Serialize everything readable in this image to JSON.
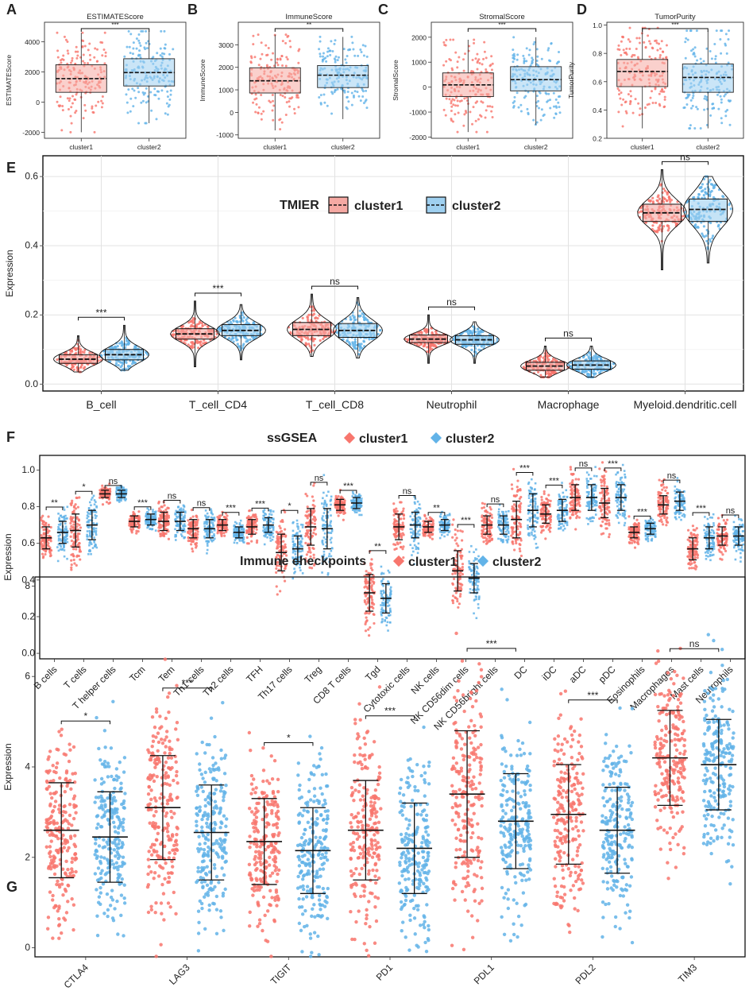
{
  "colors": {
    "cluster1": "#f8766d",
    "cluster2": "#62b3e8",
    "box1": "#f5a9a3",
    "box2": "#9fd0f0",
    "grid": "#e2e2e2"
  },
  "chart_data": [
    {
      "panel": "A",
      "type": "box",
      "title": "ESTIMATEScore",
      "ylabel": "ESTIMATEScore",
      "categories": [
        "cluster1",
        "cluster2"
      ],
      "ylim": [
        -2400,
        5300
      ],
      "yticks": [
        -2000,
        0,
        2000,
        4000
      ],
      "ytick_labels": [
        "-2000",
        "0",
        "2000",
        "4000"
      ],
      "series": [
        {
          "name": "cluster1",
          "q1": 650,
          "median": 1560,
          "q3": 2480,
          "min": -2000,
          "max": 4600
        },
        {
          "name": "cluster2",
          "q1": 1070,
          "median": 1960,
          "q3": 2880,
          "min": -1400,
          "max": 4700
        }
      ],
      "sig": "***"
    },
    {
      "panel": "B",
      "type": "box",
      "title": "ImmuneScore",
      "ylabel": "ImmuneScore",
      "categories": [
        "cluster1",
        "cluster2"
      ],
      "ylim": [
        -1150,
        4000
      ],
      "yticks": [
        -1000,
        0,
        1000,
        2000,
        3000
      ],
      "ytick_labels": [
        "-1000",
        "0",
        "1000",
        "2000",
        "3000"
      ],
      "series": [
        {
          "name": "cluster1",
          "q1": 860,
          "median": 1400,
          "q3": 1980,
          "min": -800,
          "max": 3450
        },
        {
          "name": "cluster2",
          "q1": 1100,
          "median": 1650,
          "q3": 2080,
          "min": -300,
          "max": 3350
        }
      ],
      "sig": "**"
    },
    {
      "panel": "C",
      "type": "box",
      "title": "StromalScore",
      "ylabel": "StromalScore",
      "categories": [
        "cluster1",
        "cluster2"
      ],
      "ylim": [
        -2050,
        2600
      ],
      "yticks": [
        -2000,
        -1000,
        0,
        1000,
        2000
      ],
      "ytick_labels": [
        "-2000",
        "-1000",
        "0",
        "1000",
        "2000"
      ],
      "series": [
        {
          "name": "cluster1",
          "q1": -380,
          "median": 90,
          "q3": 570,
          "min": -1800,
          "max": 1900
        },
        {
          "name": "cluster2",
          "q1": -150,
          "median": 300,
          "q3": 820,
          "min": -1500,
          "max": 2000
        }
      ],
      "sig": "***"
    },
    {
      "panel": "D",
      "type": "box",
      "title": "TumorPurity",
      "ylabel": "TumorPurity",
      "categories": [
        "cluster1",
        "cluster2"
      ],
      "ylim": [
        0.2,
        1.02
      ],
      "yticks": [
        0.2,
        0.4,
        0.6,
        0.8,
        1.0
      ],
      "ytick_labels": [
        "0.2",
        "0.4",
        "0.6",
        "0.8",
        "1.0"
      ],
      "series": [
        {
          "name": "cluster1",
          "q1": 0.565,
          "median": 0.672,
          "q3": 0.757,
          "min": 0.27,
          "max": 0.98
        },
        {
          "name": "cluster2",
          "q1": 0.525,
          "median": 0.63,
          "q3": 0.725,
          "min": 0.27,
          "max": 0.96
        }
      ],
      "sig": "***"
    },
    {
      "panel": "E",
      "type": "violin-box",
      "ylabel": "Expression",
      "legend_title": "TMIER",
      "legend": [
        "cluster1",
        "cluster2"
      ],
      "categories": [
        "B_cell",
        "T_cell_CD4",
        "T_cell_CD8",
        "Neutrophil",
        "Macrophage",
        "Myeloid.dendritic.cell"
      ],
      "ylim": [
        -0.02,
        0.66
      ],
      "yticks": [
        0.0,
        0.2,
        0.4,
        0.6
      ],
      "ytick_labels": [
        "0.0",
        "0.2",
        "0.4",
        "0.6"
      ],
      "series": [
        {
          "name": "cluster1",
          "q1": [
            0.06,
            0.13,
            0.14,
            0.12,
            0.04,
            0.47
          ],
          "median": [
            0.072,
            0.145,
            0.158,
            0.13,
            0.052,
            0.495
          ],
          "q3": [
            0.085,
            0.16,
            0.178,
            0.142,
            0.063,
            0.52
          ],
          "min": [
            0.035,
            0.05,
            0.08,
            0.06,
            0.02,
            0.33
          ],
          "max": [
            0.14,
            0.24,
            0.26,
            0.2,
            0.11,
            0.62
          ]
        },
        {
          "name": "cluster2",
          "q1": [
            0.07,
            0.14,
            0.135,
            0.115,
            0.043,
            0.47
          ],
          "median": [
            0.085,
            0.155,
            0.155,
            0.128,
            0.055,
            0.505
          ],
          "q3": [
            0.1,
            0.172,
            0.175,
            0.14,
            0.067,
            0.535
          ],
          "min": [
            0.04,
            0.07,
            0.075,
            0.06,
            0.02,
            0.35
          ],
          "max": [
            0.17,
            0.23,
            0.25,
            0.18,
            0.11,
            0.6
          ]
        }
      ],
      "sig": [
        "***",
        "***",
        "ns",
        "ns",
        "ns",
        "ns"
      ]
    },
    {
      "panel": "F",
      "type": "dot-errorbar",
      "title": "ssGSEA",
      "ylabel": "Expression",
      "legend": [
        "cluster1",
        "cluster2"
      ],
      "categories": [
        "B cells",
        "T cells",
        "T helper cells",
        "Tcm",
        "Tem",
        "Th1 cells",
        "Th2 cells",
        "TFH",
        "Th17 cells",
        "Treg",
        "CD8 T cells",
        "Tgd",
        "Cytotoxic cells",
        "NK cells",
        "NK CD56dim cells",
        "NK CD56bright cells",
        "DC",
        "iDC",
        "aDC",
        "pDC",
        "Eosinophils",
        "Macrophages",
        "Mast cells",
        "Neutrophils"
      ],
      "ylim": [
        -0.03,
        1.08
      ],
      "yticks": [
        0.0,
        0.2,
        0.4,
        0.6,
        0.8,
        1.0
      ],
      "ytick_labels": [
        "0.0",
        "0.2",
        "0.4",
        "0.6",
        "0.8",
        "1.0"
      ],
      "series": [
        {
          "name": "cluster1",
          "mean": [
            0.63,
            0.67,
            0.87,
            0.72,
            0.72,
            0.68,
            0.7,
            0.69,
            0.55,
            0.69,
            0.81,
            0.33,
            0.69,
            0.69,
            0.45,
            0.7,
            0.73,
            0.76,
            0.85,
            0.82,
            0.66,
            0.81,
            0.57,
            0.64
          ],
          "sd": [
            0.06,
            0.09,
            0.02,
            0.03,
            0.05,
            0.05,
            0.03,
            0.04,
            0.1,
            0.1,
            0.03,
            0.1,
            0.07,
            0.03,
            0.11,
            0.05,
            0.1,
            0.05,
            0.07,
            0.08,
            0.03,
            0.05,
            0.06,
            0.05
          ]
        },
        {
          "name": "cluster2",
          "mean": [
            0.66,
            0.7,
            0.87,
            0.73,
            0.72,
            0.68,
            0.66,
            0.7,
            0.57,
            0.68,
            0.82,
            0.3,
            0.7,
            0.7,
            0.41,
            0.7,
            0.78,
            0.78,
            0.85,
            0.85,
            0.68,
            0.83,
            0.63,
            0.64
          ],
          "sd": [
            0.06,
            0.08,
            0.02,
            0.03,
            0.05,
            0.05,
            0.03,
            0.04,
            0.07,
            0.11,
            0.03,
            0.08,
            0.07,
            0.03,
            0.08,
            0.05,
            0.09,
            0.06,
            0.07,
            0.07,
            0.03,
            0.05,
            0.06,
            0.05
          ]
        }
      ],
      "sig": [
        "**",
        "*",
        "ns",
        "***",
        "ns",
        "ns",
        "***",
        "***",
        "*",
        "ns",
        "***",
        "**",
        "ns",
        "**",
        "***",
        "ns",
        "***",
        "***",
        "ns",
        "***",
        "***",
        "ns",
        "***",
        "ns"
      ]
    },
    {
      "panel": "G",
      "type": "dot-errorbar",
      "title": "Immune checkpoints",
      "ylabel": "Expression",
      "legend": [
        "cluster1",
        "cluster2"
      ],
      "categories": [
        "CTLA4",
        "LAG3",
        "TIGIT",
        "PD1",
        "PDL1",
        "PDL2",
        "TIM3"
      ],
      "ylim": [
        -0.2,
        8.2
      ],
      "yticks": [
        0,
        2,
        4,
        6,
        8
      ],
      "ytick_labels": [
        "0",
        "2",
        "4",
        "6",
        "8"
      ],
      "series": [
        {
          "name": "cluster1",
          "mean": [
            2.6,
            3.1,
            2.35,
            2.6,
            3.4,
            2.95,
            4.2
          ],
          "sd": [
            1.05,
            1.15,
            0.95,
            1.1,
            1.4,
            1.1,
            1.05
          ]
        },
        {
          "name": "cluster2",
          "mean": [
            2.45,
            2.55,
            2.15,
            2.2,
            2.8,
            2.6,
            4.05
          ],
          "sd": [
            1.0,
            1.05,
            0.95,
            1.0,
            1.05,
            0.95,
            1.0
          ]
        }
      ],
      "sig": [
        "*",
        "***",
        "*",
        "***",
        "***",
        "***",
        "ns"
      ]
    }
  ]
}
